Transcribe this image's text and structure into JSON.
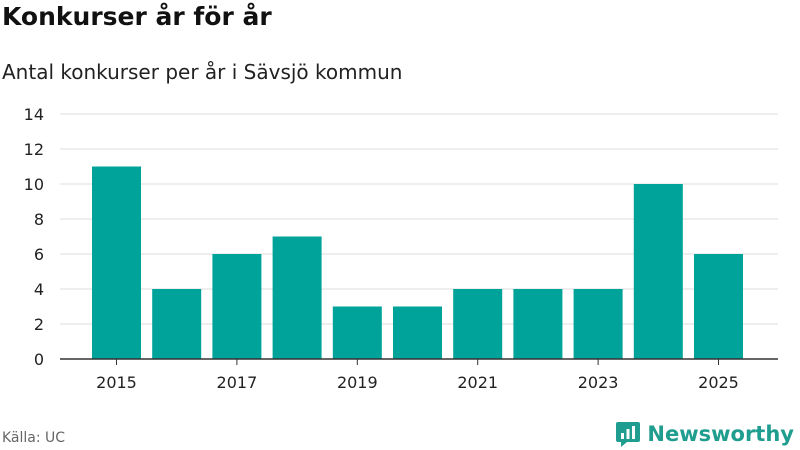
{
  "colors": {
    "bar": "#00a39a",
    "grid": "#dddddd",
    "axis": "#333333",
    "brand": "#1f9e8f"
  },
  "source_label": "Källa: UC",
  "brand": {
    "name": "Newsworthy",
    "icon": "newsworthy-logo-icon"
  },
  "chart_data": {
    "type": "bar",
    "title": "Konkurser år för år",
    "subtitle": "Antal konkurser per år i Sävsjö kommun",
    "xlabel": "",
    "ylabel": "",
    "categories": [
      "2015",
      "2016",
      "2017",
      "2018",
      "2019",
      "2020",
      "2021",
      "2022",
      "2023",
      "2024",
      "2025"
    ],
    "values": [
      11,
      4,
      6,
      7,
      3,
      3,
      4,
      4,
      4,
      10,
      6
    ],
    "x_tick_labels": [
      "2015",
      "2017",
      "2019",
      "2021",
      "2023",
      "2025"
    ],
    "ylim": [
      0,
      14
    ],
    "y_ticks": [
      0,
      2,
      4,
      6,
      8,
      10,
      12,
      14
    ],
    "grid": true,
    "legend": "none"
  }
}
